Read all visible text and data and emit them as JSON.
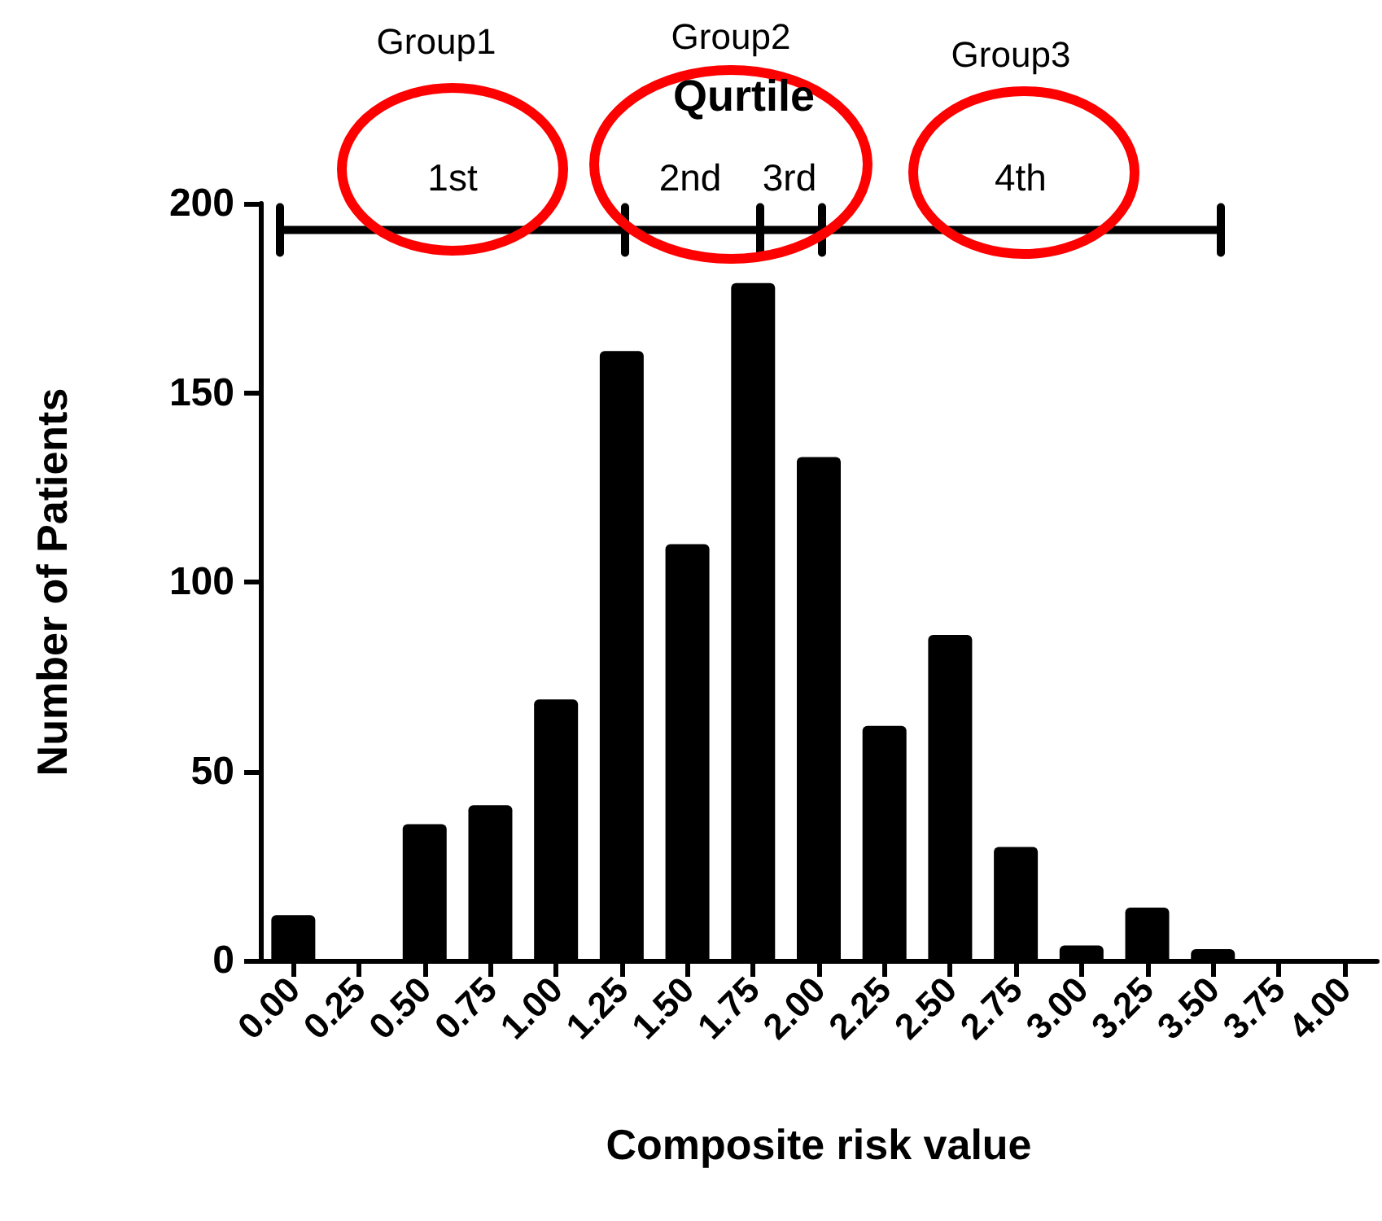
{
  "chart_data": {
    "type": "bar",
    "xlabel": "Composite risk value",
    "ylabel": "Number of Patients",
    "categories": [
      "0.00",
      "0.25",
      "0.50",
      "0.75",
      "1.00",
      "1.25",
      "1.50",
      "1.75",
      "2.00",
      "2.25",
      "2.50",
      "2.75",
      "3.00",
      "3.25",
      "3.50",
      "3.75",
      "4.00"
    ],
    "values": [
      12,
      0,
      36,
      41,
      69,
      161,
      110,
      179,
      133,
      62,
      86,
      30,
      4,
      14,
      3,
      0,
      0
    ],
    "color": "#000000",
    "ylim": [
      0,
      200
    ],
    "yticks": [
      0,
      50,
      100,
      150,
      200
    ],
    "grid": false,
    "ref_lines": [
      {
        "axis": "y",
        "value": 193,
        "label": null,
        "color": "#000000"
      }
    ],
    "annotations": [
      "Qurtile",
      "Group1",
      "Group2",
      "Group3",
      "1st",
      "2nd",
      "3rd",
      "4th"
    ]
  }
}
